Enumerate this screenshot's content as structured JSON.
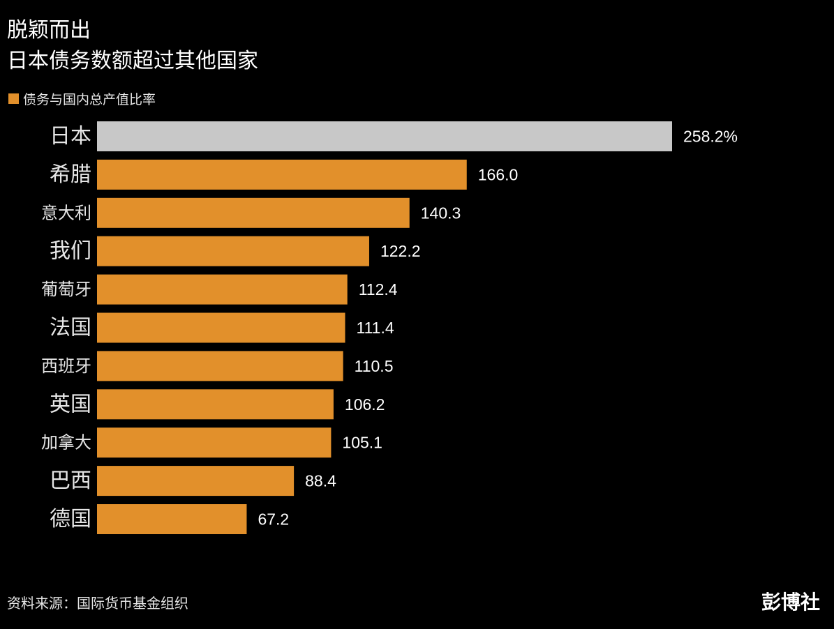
{
  "colors": {
    "background": "#000000",
    "highlight_bar": "#c8c8c8",
    "bar": "#e2902b",
    "text": "#ffffff"
  },
  "chart_data": {
    "type": "bar",
    "orientation": "horizontal",
    "title": "脱颖而出",
    "subtitle": "日本债务数额超过其他国家",
    "legend": "债务与国内总产值比率",
    "legend_placement": "top-left",
    "categories": [
      "日本",
      "希腊",
      "意大利",
      "我们",
      "葡萄牙",
      "法国",
      "西班牙",
      "英国",
      "加拿大",
      "巴西",
      "德国"
    ],
    "values": [
      258.2,
      166.0,
      140.3,
      122.2,
      112.4,
      111.4,
      110.5,
      106.2,
      105.1,
      88.4,
      67.2
    ],
    "value_labels": [
      "258.2%",
      "166.0",
      "140.3",
      "122.2",
      "112.4",
      "111.4",
      "110.5",
      "106.2",
      "105.1",
      "88.4",
      "67.2"
    ],
    "highlight_index": 0,
    "xlim": [
      0,
      258.2
    ],
    "grid": false
  },
  "footer": {
    "source": "资料来源：国际货币基金组织",
    "brand": "彭博社"
  }
}
